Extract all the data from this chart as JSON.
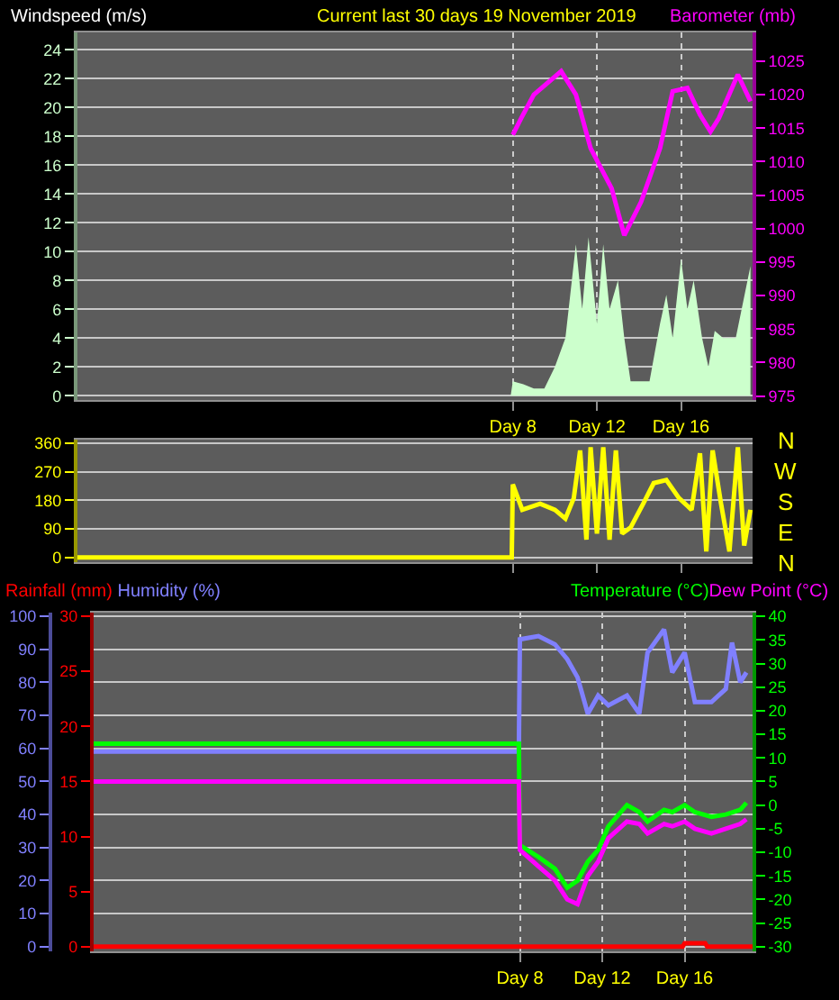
{
  "chart_data": [
    {
      "type": "area",
      "title": "Current last 30 days 19 November 2019",
      "ylabel": "Windspeed (m/s)",
      "y2label": "Barometer (mb)",
      "xlim": [
        "2019-10-18T07:12",
        "2019-11-19T09:36"
      ],
      "xticks": [
        {
          "value": "2019-11-08",
          "label": "Day 8"
        },
        {
          "value": "2019-11-12",
          "label": "Day 12"
        },
        {
          "value": "2019-11-16",
          "label": "Day 16"
        }
      ],
      "ylim": [
        -0.3,
        25.2
      ],
      "yticks": [
        0,
        2,
        4,
        6,
        8,
        10,
        12,
        14,
        16,
        18,
        20,
        22,
        24
      ],
      "y2lim": [
        974.4,
        1029.3
      ],
      "y2ticks": [
        975,
        980,
        985,
        990,
        995,
        1000,
        1005,
        1010,
        1015,
        1020,
        1025
      ],
      "grid": true,
      "series": [
        {
          "color": "#ccffcc",
          "x": [
            "2019-10-18T07:12",
            "2019-11-07T21:36",
            "2019-11-08T00:00",
            "2019-11-08T12:00",
            "2019-11-09T00:00",
            "2019-11-09T12:00",
            "2019-11-10T00:00",
            "2019-11-10T12:00",
            "2019-11-11T00:00",
            "2019-11-11T07:12",
            "2019-11-11T14:24",
            "2019-11-12T00:00",
            "2019-11-12T07:12",
            "2019-11-12T14:24",
            "2019-11-13T00:00",
            "2019-11-13T07:12",
            "2019-11-13T14:24",
            "2019-11-14T00:00",
            "2019-11-14T12:00",
            "2019-11-15T00:00",
            "2019-11-15T07:12",
            "2019-11-15T14:24",
            "2019-11-16T00:00",
            "2019-11-16T07:12",
            "2019-11-16T14:24",
            "2019-11-17T00:00",
            "2019-11-17T07:12",
            "2019-11-17T14:24",
            "2019-11-18T00:00",
            "2019-11-18T14:24",
            "2019-11-19T07:12"
          ],
          "values": [
            0,
            0,
            1,
            0.8,
            0.5,
            0.5,
            2,
            4,
            10.5,
            6,
            11,
            5,
            10.5,
            6,
            8,
            4,
            1,
            1,
            1,
            5,
            7,
            4,
            9.5,
            6,
            8,
            4,
            2,
            4.5,
            4,
            4,
            9
          ]
        },
        {
          "type": "line",
          "axis": "y2",
          "color": "#ff00ff",
          "x": [
            "2019-11-08T00:00",
            "2019-11-08T09:36",
            "2019-11-09T00:00",
            "2019-11-10T07:12",
            "2019-11-11T00:00",
            "2019-11-11T16:48",
            "2019-11-12T16:48",
            "2019-11-13T07:12",
            "2019-11-14T02:24",
            "2019-11-15T00:00",
            "2019-11-15T14:24",
            "2019-11-16T07:12",
            "2019-11-16T21:36",
            "2019-11-17T09:36",
            "2019-11-17T19:12",
            "2019-11-18T16:48",
            "2019-11-19T07:12"
          ],
          "values": [
            1014,
            1016.5,
            1020,
            1023.5,
            1020,
            1012,
            1006,
            999,
            1004,
            1012,
            1020.5,
            1021,
            1017,
            1014.5,
            1016.5,
            1023,
            1019
          ]
        }
      ]
    },
    {
      "type": "line",
      "xlim": [
        "2019-10-18T07:12",
        "2019-11-19T09:36"
      ],
      "xticks": [
        {
          "value": "2019-11-08",
          "label": null
        },
        {
          "value": "2019-11-12",
          "label": null
        },
        {
          "value": "2019-11-16",
          "label": null
        }
      ],
      "ylim": [
        -15,
        371
      ],
      "yticks": [
        0,
        90,
        180,
        270,
        360
      ],
      "annotations": [
        "N",
        "W",
        "S",
        "E",
        "N"
      ],
      "grid": "y",
      "tick_labels": "y",
      "series": [
        {
          "color": "#ffff00",
          "x": [
            "2019-10-18T07:12",
            "2019-11-07T22:48",
            "2019-11-08T00:00",
            "2019-11-08T10:48",
            "2019-11-09T07:12",
            "2019-11-10T00:00",
            "2019-11-10T12:00",
            "2019-11-10T21:36",
            "2019-11-11T04:48",
            "2019-11-11T12:00",
            "2019-11-11T16:48",
            "2019-11-12T00:00",
            "2019-11-12T07:12",
            "2019-11-12T14:24",
            "2019-11-12T21:36",
            "2019-11-13T04:48",
            "2019-11-13T14:24",
            "2019-11-14T04:48",
            "2019-11-14T16:48",
            "2019-11-15T07:12",
            "2019-11-15T21:36",
            "2019-11-16T12:00",
            "2019-11-16T21:36",
            "2019-11-17T04:48",
            "2019-11-17T12:00",
            "2019-11-17T21:36",
            "2019-11-18T07:12",
            "2019-11-18T16:48",
            "2019-11-19T00:00",
            "2019-11-19T07:12"
          ],
          "values": [
            0,
            0,
            230,
            150,
            169,
            150,
            122,
            187,
            337,
            56,
            347,
            75,
            347,
            56,
            337,
            75,
            94,
            169,
            234,
            244,
            187,
            150,
            328,
            19,
            337,
            169,
            19,
            347,
            37,
            150
          ]
        }
      ]
    },
    {
      "type": "line",
      "xlim": [
        "2019-10-18T07:12",
        "2019-11-19T07:12"
      ],
      "xticks": [
        {
          "value": "2019-11-08",
          "label": "Day 8"
        },
        {
          "value": "2019-11-12",
          "label": "Day 12"
        },
        {
          "value": "2019-11-16",
          "label": "Day 16"
        }
      ],
      "ylim": [
        -1.45,
        101.1
      ],
      "yticks": [
        0,
        10,
        20,
        30,
        40,
        50,
        60,
        70,
        80,
        90,
        100
      ],
      "y3lim": [
        -0.43,
        30.33
      ],
      "y3ticks": [
        0,
        5,
        10,
        15,
        20,
        25,
        30
      ],
      "y2lim": [
        -31,
        40.8
      ],
      "y2ticks": [
        -30,
        -25,
        -20,
        -15,
        -10,
        -5,
        0,
        5,
        10,
        15,
        20,
        25,
        30,
        35,
        40
      ],
      "grid": true,
      "series": [
        {
          "name": "Rainfall (mm)",
          "axis": "y3",
          "color": "#ff0000",
          "x": [
            "2019-10-18T07:12",
            "2019-11-15T21:36",
            "2019-11-16T00:00",
            "2019-11-17T00:00",
            "2019-11-17T02:24",
            "2019-11-19T07:12"
          ],
          "values": [
            0,
            0,
            0.3,
            0.3,
            0,
            0
          ]
        },
        {
          "name": "Humidity (%)",
          "color": "#8080ff",
          "x": [
            "2019-10-18T07:12",
            "2019-11-07T22:48",
            "2019-11-08T00:00",
            "2019-11-08T21:36",
            "2019-11-09T16:48",
            "2019-11-10T07:12",
            "2019-11-10T19:12",
            "2019-11-11T07:12",
            "2019-11-11T19:12",
            "2019-11-12T07:12",
            "2019-11-13T04:48",
            "2019-11-13T19:12",
            "2019-11-14T04:48",
            "2019-11-15T00:00",
            "2019-11-15T09:36",
            "2019-11-16T00:00",
            "2019-11-16T12:00",
            "2019-11-17T07:12",
            "2019-11-18T00:00",
            "2019-11-18T07:12",
            "2019-11-18T16:48",
            "2019-11-19T00:00"
          ],
          "values": [
            59,
            59,
            93,
            94,
            91.5,
            87,
            81.5,
            70.5,
            76,
            73,
            76,
            70.5,
            89,
            96,
            83,
            89,
            74,
            74,
            78,
            92,
            80,
            83
          ]
        },
        {
          "name": "Temperature (°C)",
          "axis": "y2",
          "color": "#00ff00",
          "x": [
            "2019-10-18T07:12",
            "2019-11-07T22:48",
            "2019-11-08T00:00",
            "2019-11-08T21:36",
            "2019-11-09T16:48",
            "2019-11-10T07:12",
            "2019-11-10T19:12",
            "2019-11-11T07:12",
            "2019-11-11T19:12",
            "2019-11-12T07:12",
            "2019-11-13T04:48",
            "2019-11-13T19:12",
            "2019-11-14T04:48",
            "2019-11-15T00:00",
            "2019-11-15T09:36",
            "2019-11-16T00:00",
            "2019-11-16T12:00",
            "2019-11-17T07:12",
            "2019-11-18T00:00",
            "2019-11-18T16:48",
            "2019-11-19T00:00"
          ],
          "values": [
            13,
            13,
            -8.5,
            -11,
            -13.5,
            -17.5,
            -16,
            -12,
            -9.5,
            -4.5,
            0,
            -1.5,
            -3.5,
            -1,
            -1.5,
            0,
            -1.5,
            -2.5,
            -2,
            -1,
            0.5
          ]
        },
        {
          "name": "Dew Point (°C)",
          "axis": "y2",
          "color": "#ff00ff",
          "x": [
            "2019-10-18T07:12",
            "2019-11-07T22:48",
            "2019-11-08T00:00",
            "2019-11-08T21:36",
            "2019-11-09T16:48",
            "2019-11-10T07:12",
            "2019-11-10T19:12",
            "2019-11-11T07:12",
            "2019-11-11T19:12",
            "2019-11-12T07:12",
            "2019-11-13T04:48",
            "2019-11-13T19:12",
            "2019-11-14T04:48",
            "2019-11-15T00:00",
            "2019-11-15T09:36",
            "2019-11-16T00:00",
            "2019-11-16T12:00",
            "2019-11-17T07:12",
            "2019-11-18T00:00",
            "2019-11-18T16:48",
            "2019-11-19T00:00"
          ],
          "values": [
            5,
            5,
            -9.5,
            -13,
            -16,
            -20,
            -21,
            -15,
            -12,
            -7,
            -3.5,
            -4,
            -6,
            -4,
            -4.5,
            -3.5,
            -5,
            -6,
            -5,
            -4,
            -3
          ]
        }
      ]
    }
  ]
}
